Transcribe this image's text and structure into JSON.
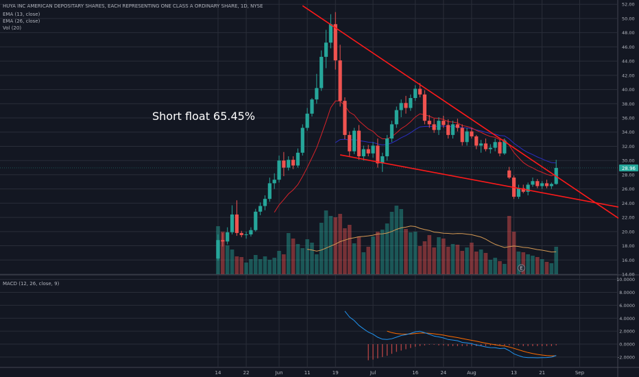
{
  "header": {
    "title": "HUYA INC AMERICAN DEPOSITARY SHARES, EACH REPRESENTING ONE CLASS A ORDINARY SHARE, 1D, NYSE",
    "indicators": [
      "EMA (13, close)",
      "EMA (26, close)",
      "Vol (20)"
    ]
  },
  "macd_label": "MACD (12, 26, close, 9)",
  "annotation": "Short float 65.45%",
  "current_price": "28.96",
  "earnings_marker": "E",
  "colors": {
    "background": "#131722",
    "up": "#26a69a",
    "down": "#ef5350",
    "trendline": "#ff1a1a",
    "ema13": "#d8232a",
    "ema26": "#2b2fc2",
    "vol_ma": "#d59a54",
    "macd": "#2196f3",
    "signal": "#ff6d00",
    "price_tag": "#26a69a"
  },
  "chart_data": [
    {
      "type": "candlestick",
      "ylim": [
        14,
        52.6
      ],
      "y_ticks": [
        "52.00",
        "50.00",
        "48.00",
        "46.00",
        "44.00",
        "42.00",
        "40.00",
        "38.00",
        "36.00",
        "34.00",
        "32.00",
        "30.00",
        "28.00",
        "26.00",
        "24.00",
        "22.00",
        "20.00",
        "18.00",
        "16.00",
        "14.00"
      ],
      "x_ticks": [
        {
          "label": "14",
          "index": 0
        },
        {
          "label": "22",
          "index": 6
        },
        {
          "label": "Jun",
          "index": 13
        },
        {
          "label": "11",
          "index": 19
        },
        {
          "label": "19",
          "index": 25
        },
        {
          "label": "Jul",
          "index": 33
        },
        {
          "label": "16",
          "index": 42
        },
        {
          "label": "24",
          "index": 48
        },
        {
          "label": "Aug",
          "index": 54
        },
        {
          "label": "13",
          "index": 63
        },
        {
          "label": "21",
          "index": 69
        },
        {
          "label": "Sep",
          "index": 77
        }
      ],
      "candles": [
        {
          "o": 16.2,
          "h": 19.6,
          "l": 15.9,
          "c": 18.8
        },
        {
          "o": 18.8,
          "h": 19.8,
          "l": 17.9,
          "c": 18.6
        },
        {
          "o": 18.6,
          "h": 20.6,
          "l": 18.2,
          "c": 19.9
        },
        {
          "o": 19.9,
          "h": 23.7,
          "l": 19.6,
          "c": 22.4
        },
        {
          "o": 22.4,
          "h": 24.4,
          "l": 19.4,
          "c": 19.8
        },
        {
          "o": 19.8,
          "h": 20.1,
          "l": 19.2,
          "c": 19.5
        },
        {
          "o": 19.5,
          "h": 20.0,
          "l": 19.0,
          "c": 19.6
        },
        {
          "o": 19.6,
          "h": 20.6,
          "l": 19.3,
          "c": 20.2
        },
        {
          "o": 20.2,
          "h": 23.2,
          "l": 20.0,
          "c": 22.8
        },
        {
          "o": 22.8,
          "h": 24.1,
          "l": 22.3,
          "c": 23.6
        },
        {
          "o": 23.6,
          "h": 25.1,
          "l": 23.0,
          "c": 24.6
        },
        {
          "o": 24.6,
          "h": 27.6,
          "l": 24.2,
          "c": 26.8
        },
        {
          "o": 26.8,
          "h": 28.2,
          "l": 26.0,
          "c": 27.3
        },
        {
          "o": 27.3,
          "h": 30.7,
          "l": 26.9,
          "c": 30.0
        },
        {
          "o": 30.0,
          "h": 31.2,
          "l": 27.8,
          "c": 29.0
        },
        {
          "o": 29.0,
          "h": 30.6,
          "l": 28.6,
          "c": 30.1
        },
        {
          "o": 30.1,
          "h": 30.6,
          "l": 28.8,
          "c": 29.3
        },
        {
          "o": 29.3,
          "h": 31.7,
          "l": 29.0,
          "c": 31.1
        },
        {
          "o": 31.1,
          "h": 35.1,
          "l": 30.7,
          "c": 34.6
        },
        {
          "o": 34.6,
          "h": 37.4,
          "l": 34.2,
          "c": 36.6
        },
        {
          "o": 36.6,
          "h": 38.8,
          "l": 36.2,
          "c": 38.6
        },
        {
          "o": 38.6,
          "h": 42.2,
          "l": 38.0,
          "c": 40.2
        },
        {
          "o": 40.2,
          "h": 45.5,
          "l": 39.8,
          "c": 44.6
        },
        {
          "o": 44.6,
          "h": 48.4,
          "l": 43.0,
          "c": 46.6
        },
        {
          "o": 46.6,
          "h": 50.6,
          "l": 45.8,
          "c": 49.2
        },
        {
          "o": 49.2,
          "h": 50.9,
          "l": 42.8,
          "c": 44.1
        },
        {
          "o": 44.1,
          "h": 46.3,
          "l": 37.6,
          "c": 38.4
        },
        {
          "o": 38.4,
          "h": 38.9,
          "l": 33.0,
          "c": 33.6
        },
        {
          "o": 33.6,
          "h": 34.1,
          "l": 30.6,
          "c": 31.3
        },
        {
          "o": 31.3,
          "h": 34.6,
          "l": 30.9,
          "c": 34.2
        },
        {
          "o": 34.2,
          "h": 35.0,
          "l": 30.1,
          "c": 30.6
        },
        {
          "o": 30.6,
          "h": 32.1,
          "l": 30.0,
          "c": 31.6
        },
        {
          "o": 31.6,
          "h": 32.2,
          "l": 30.6,
          "c": 31.0
        },
        {
          "o": 31.0,
          "h": 32.6,
          "l": 30.4,
          "c": 32.1
        },
        {
          "o": 32.1,
          "h": 33.1,
          "l": 29.0,
          "c": 29.6
        },
        {
          "o": 29.6,
          "h": 31.1,
          "l": 28.4,
          "c": 30.6
        },
        {
          "o": 30.6,
          "h": 33.6,
          "l": 30.0,
          "c": 33.1
        },
        {
          "o": 33.1,
          "h": 35.6,
          "l": 32.6,
          "c": 35.1
        },
        {
          "o": 35.1,
          "h": 37.6,
          "l": 34.6,
          "c": 37.1
        },
        {
          "o": 37.1,
          "h": 38.6,
          "l": 36.1,
          "c": 38.1
        },
        {
          "o": 38.1,
          "h": 39.1,
          "l": 36.6,
          "c": 37.4
        },
        {
          "o": 37.4,
          "h": 39.3,
          "l": 37.0,
          "c": 38.8
        },
        {
          "o": 38.8,
          "h": 40.6,
          "l": 38.4,
          "c": 40.1
        },
        {
          "o": 40.1,
          "h": 40.9,
          "l": 38.9,
          "c": 39.3
        },
        {
          "o": 39.3,
          "h": 39.9,
          "l": 35.1,
          "c": 35.6
        },
        {
          "o": 35.6,
          "h": 36.4,
          "l": 34.6,
          "c": 35.1
        },
        {
          "o": 35.1,
          "h": 35.9,
          "l": 33.9,
          "c": 34.3
        },
        {
          "o": 34.3,
          "h": 36.1,
          "l": 33.6,
          "c": 35.6
        },
        {
          "o": 35.6,
          "h": 36.3,
          "l": 34.6,
          "c": 35.0
        },
        {
          "o": 35.0,
          "h": 35.8,
          "l": 33.1,
          "c": 33.6
        },
        {
          "o": 33.6,
          "h": 35.6,
          "l": 33.1,
          "c": 35.1
        },
        {
          "o": 35.1,
          "h": 35.9,
          "l": 34.1,
          "c": 34.6
        },
        {
          "o": 34.6,
          "h": 35.1,
          "l": 32.1,
          "c": 32.6
        },
        {
          "o": 32.6,
          "h": 34.6,
          "l": 32.1,
          "c": 34.1
        },
        {
          "o": 34.1,
          "h": 34.6,
          "l": 33.1,
          "c": 33.4
        },
        {
          "o": 33.4,
          "h": 33.6,
          "l": 31.6,
          "c": 32.1
        },
        {
          "o": 32.1,
          "h": 32.9,
          "l": 31.1,
          "c": 32.4
        },
        {
          "o": 32.4,
          "h": 33.1,
          "l": 31.3,
          "c": 31.6
        },
        {
          "o": 31.6,
          "h": 32.3,
          "l": 31.0,
          "c": 31.8
        },
        {
          "o": 31.8,
          "h": 33.1,
          "l": 31.3,
          "c": 32.6
        },
        {
          "o": 32.6,
          "h": 32.9,
          "l": 30.6,
          "c": 31.0
        },
        {
          "o": 31.0,
          "h": 33.1,
          "l": 30.8,
          "c": 32.8
        },
        {
          "o": 28.6,
          "h": 29.1,
          "l": 27.4,
          "c": 27.6
        },
        {
          "o": 27.6,
          "h": 27.9,
          "l": 24.6,
          "c": 24.9
        },
        {
          "o": 24.9,
          "h": 26.6,
          "l": 24.6,
          "c": 26.1
        },
        {
          "o": 26.1,
          "h": 26.6,
          "l": 25.4,
          "c": 25.6
        },
        {
          "o": 25.6,
          "h": 26.9,
          "l": 25.1,
          "c": 26.6
        },
        {
          "o": 26.6,
          "h": 27.6,
          "l": 26.3,
          "c": 27.1
        },
        {
          "o": 27.1,
          "h": 27.4,
          "l": 26.1,
          "c": 26.4
        },
        {
          "o": 26.4,
          "h": 27.1,
          "l": 26.0,
          "c": 26.8
        },
        {
          "o": 26.8,
          "h": 27.3,
          "l": 26.1,
          "c": 26.4
        },
        {
          "o": 26.4,
          "h": 26.9,
          "l": 26.0,
          "c": 26.7
        },
        {
          "o": 26.7,
          "h": 30.1,
          "l": 26.6,
          "c": 28.96
        }
      ],
      "volume_rel": [
        0.7,
        0.62,
        0.42,
        0.36,
        0.26,
        0.25,
        0.17,
        0.22,
        0.28,
        0.22,
        0.26,
        0.21,
        0.24,
        0.34,
        0.29,
        0.6,
        0.52,
        0.44,
        0.38,
        0.51,
        0.46,
        0.29,
        0.75,
        0.93,
        0.85,
        0.83,
        0.88,
        0.67,
        0.72,
        0.45,
        0.55,
        0.32,
        0.4,
        0.55,
        0.62,
        0.65,
        0.74,
        0.91,
        1.0,
        0.95,
        0.66,
        0.61,
        0.62,
        0.41,
        0.48,
        0.57,
        0.39,
        0.54,
        0.52,
        0.4,
        0.44,
        0.43,
        0.34,
        0.39,
        0.46,
        0.33,
        0.36,
        0.31,
        0.21,
        0.24,
        0.19,
        0.15,
        0.85,
        0.62,
        0.33,
        0.32,
        0.29,
        0.27,
        0.25,
        0.22,
        0.18,
        0.16,
        0.4
      ],
      "trendlines": [
        {
          "from": {
            "index": 18,
            "price": 51.8
          },
          "to": {
            "index": 76,
            "price": 26.0
          }
        },
        {
          "from": {
            "index": 26,
            "price": 30.8
          },
          "to": {
            "index": 76,
            "price": 24.6
          }
        }
      ]
    },
    {
      "type": "line",
      "name": "MACD (12, 26, close, 9)",
      "ylim": [
        -3.5,
        10.6
      ],
      "y_ticks": [
        "10.0000",
        "8.0000",
        "6.0000",
        "4.0000",
        "2.0000",
        "0.0000",
        "-2.0000"
      ],
      "histogram_start_index": 32,
      "histogram": [
        -2.5,
        -2.4,
        -2.2,
        -2.0,
        -1.8,
        -1.5,
        -1.2,
        -1.0,
        -0.8,
        -0.6,
        -0.4,
        -0.3,
        -0.2,
        -0.1,
        -0.1,
        -0.2,
        -0.2,
        -0.3,
        -0.3,
        -0.3,
        -0.3,
        -0.3,
        -0.3,
        -0.3,
        -0.3,
        -0.3,
        -0.2,
        -0.2,
        -0.2,
        -0.2,
        -0.2,
        -0.2,
        -0.2,
        -0.3,
        -0.3,
        -0.3,
        -0.3,
        -0.3,
        -0.3,
        -0.3,
        -0.2
      ]
    }
  ]
}
